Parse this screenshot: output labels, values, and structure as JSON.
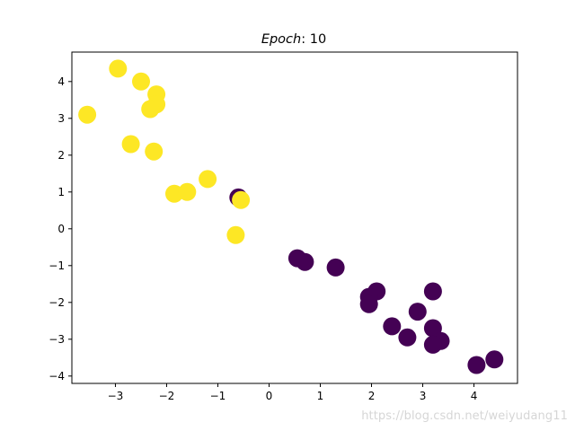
{
  "chart_data": {
    "type": "scatter",
    "title": "Epoch:10",
    "title_parts": {
      "italic": "Epoch",
      "plain": ": 10"
    },
    "xlabel": "",
    "ylabel": "",
    "xlim": [
      -3.85,
      4.85
    ],
    "ylim": [
      -4.2,
      4.8
    ],
    "xticks": [
      -3,
      -2,
      -1,
      0,
      1,
      2,
      3,
      4
    ],
    "xtick_labels": [
      "−3",
      "−2",
      "−1",
      "0",
      "1",
      "2",
      "3",
      "4"
    ],
    "yticks": [
      -4,
      -3,
      -2,
      -1,
      0,
      1,
      2,
      3,
      4
    ],
    "ytick_labels": [
      "−4",
      "−3",
      "−2",
      "−1",
      "0",
      "1",
      "2",
      "3",
      "4"
    ],
    "grid": false,
    "colors": {
      "class_0": "#440154",
      "class_1": "#fde725"
    },
    "points": [
      {
        "x": -3.55,
        "y": 3.1,
        "class": 1
      },
      {
        "x": -2.95,
        "y": 4.35,
        "class": 1
      },
      {
        "x": -2.5,
        "y": 4.0,
        "class": 1
      },
      {
        "x": -2.2,
        "y": 3.65,
        "class": 1
      },
      {
        "x": -2.2,
        "y": 3.38,
        "class": 1
      },
      {
        "x": -2.32,
        "y": 3.25,
        "class": 1
      },
      {
        "x": -2.7,
        "y": 2.3,
        "class": 1
      },
      {
        "x": -2.25,
        "y": 2.1,
        "class": 1
      },
      {
        "x": -1.85,
        "y": 0.95,
        "class": 1
      },
      {
        "x": -1.6,
        "y": 1.0,
        "class": 1
      },
      {
        "x": -1.2,
        "y": 1.35,
        "class": 1
      },
      {
        "x": -0.6,
        "y": 0.85,
        "class": 0
      },
      {
        "x": -0.55,
        "y": 0.78,
        "class": 1
      },
      {
        "x": -0.65,
        "y": -0.17,
        "class": 1
      },
      {
        "x": 0.55,
        "y": -0.8,
        "class": 0
      },
      {
        "x": 0.7,
        "y": -0.9,
        "class": 0
      },
      {
        "x": 1.3,
        "y": -1.05,
        "class": 0
      },
      {
        "x": 2.1,
        "y": -1.7,
        "class": 0
      },
      {
        "x": 1.95,
        "y": -1.85,
        "class": 0
      },
      {
        "x": 1.95,
        "y": -2.05,
        "class": 0
      },
      {
        "x": 3.2,
        "y": -1.7,
        "class": 0
      },
      {
        "x": 2.9,
        "y": -2.25,
        "class": 0
      },
      {
        "x": 2.4,
        "y": -2.65,
        "class": 0
      },
      {
        "x": 2.7,
        "y": -2.95,
        "class": 0
      },
      {
        "x": 3.2,
        "y": -2.7,
        "class": 0
      },
      {
        "x": 3.35,
        "y": -3.05,
        "class": 0
      },
      {
        "x": 3.2,
        "y": -3.15,
        "class": 0
      },
      {
        "x": 4.05,
        "y": -3.7,
        "class": 0
      },
      {
        "x": 4.4,
        "y": -3.55,
        "class": 0
      }
    ]
  },
  "watermark": "https://blog.csdn.net/weiyudang11"
}
